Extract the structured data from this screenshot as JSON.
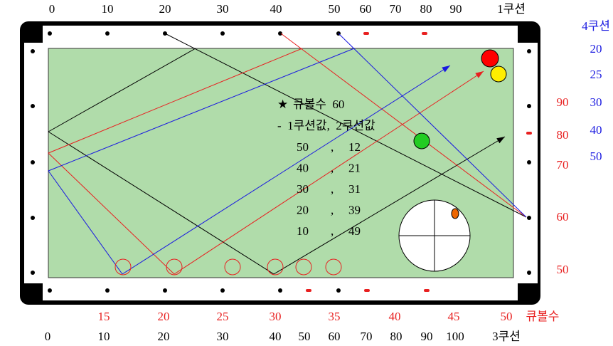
{
  "top_labels": [
    "0",
    "10",
    "20",
    "30",
    "40",
    "50",
    "60",
    "70",
    "80",
    "90",
    "1쿠션"
  ],
  "right_blue_title": "4쿠션",
  "right_blue_labels": [
    "20",
    "25",
    "30",
    "40",
    "50"
  ],
  "right_red_labels": [
    "90",
    "80",
    "70",
    "60",
    "50"
  ],
  "bottom_red_labels": [
    "15",
    "20",
    "25",
    "30",
    "35",
    "40",
    "45",
    "50"
  ],
  "bottom_red_title": "큐볼수",
  "bottom_black_labels": [
    "0",
    "10",
    "20",
    "30",
    "40",
    "50",
    "60",
    "70",
    "80",
    "90",
    "100",
    "3쿠션"
  ],
  "info": {
    "star": "★",
    "cueball_line": "큐볼수  60",
    "header": "-  1쿠션값,  2쿠션값",
    "rows": [
      {
        "a": "50",
        "b": "12"
      },
      {
        "a": "40",
        "b": "21"
      },
      {
        "a": "30",
        "b": "31"
      },
      {
        "a": "20",
        "b": "39"
      },
      {
        "a": "10",
        "b": "49"
      }
    ],
    "sep": ","
  },
  "colors": {
    "cloth": "#b0dcaa",
    "red": "#e82020",
    "blue": "#1a1ae0",
    "ball_red": "#ff0000",
    "ball_yellow": "#ffee00",
    "ball_green": "#22cc22"
  }
}
